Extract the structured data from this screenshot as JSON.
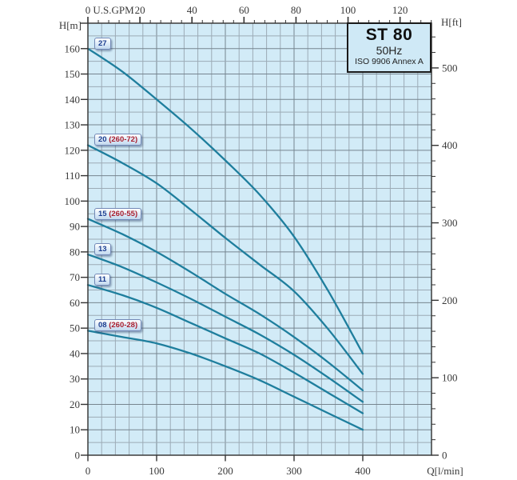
{
  "title_box": {
    "model": "ST 80",
    "frequency": "50Hz",
    "standard": "ISO 9906 Annex A"
  },
  "colors": {
    "page_bg": "#ffffff",
    "plot_bg": "#d2ebf7",
    "grid_minor": "#9cabb6",
    "grid_major": "#76858f",
    "border": "#3c3c3c",
    "tick": "#333333",
    "curve": "#1e7e9d",
    "badge_code": "#1b3d8f",
    "badge_detail": "#aa1f2e"
  },
  "chart_data": {
    "type": "line",
    "title": "ST 80 50Hz pump performance curves (head vs flow)",
    "xlabel": "Q[l/min]",
    "x2label": "U.S.GPM",
    "ylabel": "H[m]",
    "y2label": "H[ft]",
    "xlim": [
      0,
      500
    ],
    "ylim": [
      0,
      170
    ],
    "grid": {
      "x_step": 20,
      "y_step": 5,
      "x_major_every": 100,
      "y_major_every": 10
    },
    "axes": {
      "top": {
        "unit": "U.S.GPM",
        "majors": [
          0,
          20,
          40,
          60,
          80,
          100,
          120
        ],
        "major_every": 20,
        "minor_step": 4,
        "minor_max": 132
      },
      "bottom": {
        "unit": "Q[l/min]",
        "majors": [
          0,
          100,
          200,
          300,
          400
        ]
      },
      "left": {
        "unit": "H[m]",
        "majors": [
          0,
          10,
          20,
          30,
          40,
          50,
          60,
          70,
          80,
          90,
          100,
          110,
          120,
          130,
          140,
          150,
          160
        ]
      },
      "right": {
        "unit": "H[ft]",
        "majors": [
          0,
          100,
          200,
          300,
          400,
          500
        ],
        "minor_step": 20,
        "minor_max": 540
      }
    },
    "series": [
      {
        "badge_code": "27",
        "badge_detail": "",
        "points": [
          [
            0,
            160
          ],
          [
            50,
            151
          ],
          [
            100,
            140
          ],
          [
            150,
            128.5
          ],
          [
            200,
            116
          ],
          [
            250,
            102.5
          ],
          [
            300,
            86
          ],
          [
            350,
            64.5
          ],
          [
            400,
            40
          ]
        ]
      },
      {
        "badge_code": "20",
        "badge_detail": "(260-72)",
        "points": [
          [
            0,
            122
          ],
          [
            50,
            115
          ],
          [
            100,
            107
          ],
          [
            150,
            96.5
          ],
          [
            200,
            85.5
          ],
          [
            250,
            75
          ],
          [
            300,
            64.5
          ],
          [
            350,
            49.5
          ],
          [
            400,
            32
          ]
        ]
      },
      {
        "badge_code": "15",
        "badge_detail": "(260-55)",
        "points": [
          [
            0,
            93
          ],
          [
            50,
            87
          ],
          [
            100,
            80
          ],
          [
            150,
            72
          ],
          [
            200,
            63.5
          ],
          [
            250,
            55.5
          ],
          [
            300,
            46.5
          ],
          [
            350,
            36.5
          ],
          [
            400,
            25.5
          ]
        ]
      },
      {
        "badge_code": "13",
        "badge_detail": "",
        "points": [
          [
            0,
            79
          ],
          [
            50,
            74
          ],
          [
            100,
            68
          ],
          [
            150,
            61.5
          ],
          [
            200,
            54.5
          ],
          [
            250,
            47.5
          ],
          [
            300,
            39.5
          ],
          [
            350,
            30.5
          ],
          [
            400,
            21
          ]
        ]
      },
      {
        "badge_code": "11",
        "badge_detail": "",
        "points": [
          [
            0,
            67
          ],
          [
            50,
            63
          ],
          [
            100,
            58
          ],
          [
            150,
            52
          ],
          [
            200,
            46
          ],
          [
            250,
            40
          ],
          [
            300,
            32.5
          ],
          [
            350,
            24.5
          ],
          [
            400,
            16.5
          ]
        ]
      },
      {
        "badge_code": "08",
        "badge_detail": "(260-28)",
        "points": [
          [
            0,
            49
          ],
          [
            50,
            46.5
          ],
          [
            100,
            44
          ],
          [
            150,
            40
          ],
          [
            200,
            35
          ],
          [
            250,
            29.5
          ],
          [
            300,
            23
          ],
          [
            350,
            16.5
          ],
          [
            400,
            10
          ]
        ]
      }
    ]
  }
}
